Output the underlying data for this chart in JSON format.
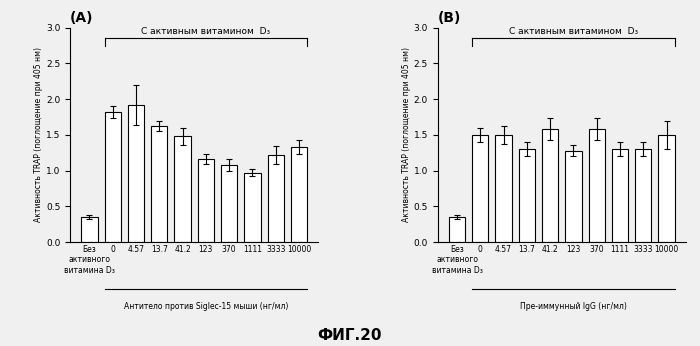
{
  "panel_A": {
    "title": "(A)",
    "values": [
      0.35,
      1.82,
      1.92,
      1.62,
      1.48,
      1.17,
      1.08,
      0.97,
      1.22,
      1.33
    ],
    "errors": [
      0.03,
      0.08,
      0.28,
      0.07,
      0.12,
      0.07,
      0.08,
      0.05,
      0.12,
      0.1
    ],
    "xlabels": [
      "Без\nактивного\nвитамина D₃",
      "0",
      "4.57",
      "13.7",
      "41.2",
      "123",
      "370",
      "1111",
      "3333",
      "10000"
    ],
    "bracket_label": "С активным витамином  D₃",
    "xlabel_main": "Антитело против Siglec-15 мыши (нг/мл)",
    "ylabel": "Активность TRAP (поглощение при 405 нм)",
    "ylim": [
      0,
      3.0
    ],
    "yticks": [
      0,
      0.5,
      1.0,
      1.5,
      2.0,
      2.5,
      3.0
    ]
  },
  "panel_B": {
    "title": "(B)",
    "values": [
      0.35,
      1.5,
      1.5,
      1.3,
      1.58,
      1.28,
      1.58,
      1.3,
      1.3,
      1.5
    ],
    "errors": [
      0.03,
      0.1,
      0.12,
      0.1,
      0.15,
      0.08,
      0.15,
      0.1,
      0.1,
      0.2
    ],
    "xlabels": [
      "Без\nактивного\nвитамина D₃",
      "0",
      "4.57",
      "13.7",
      "41.2",
      "123",
      "370",
      "1111",
      "3333",
      "10000"
    ],
    "bracket_label": "С активным витамином  D₃",
    "xlabel_main": "Пре-иммунный IgG (нг/мл)",
    "ylabel": "Активность TRAP (поглощение при 405 нм)",
    "ylim": [
      0,
      3.0
    ],
    "yticks": [
      0,
      0.5,
      1.0,
      1.5,
      2.0,
      2.5,
      3.0
    ]
  },
  "figure_title": "ФИГ.20",
  "bar_color": "#ffffff",
  "bar_edgecolor": "#000000",
  "background_color": "#f0f0f0"
}
